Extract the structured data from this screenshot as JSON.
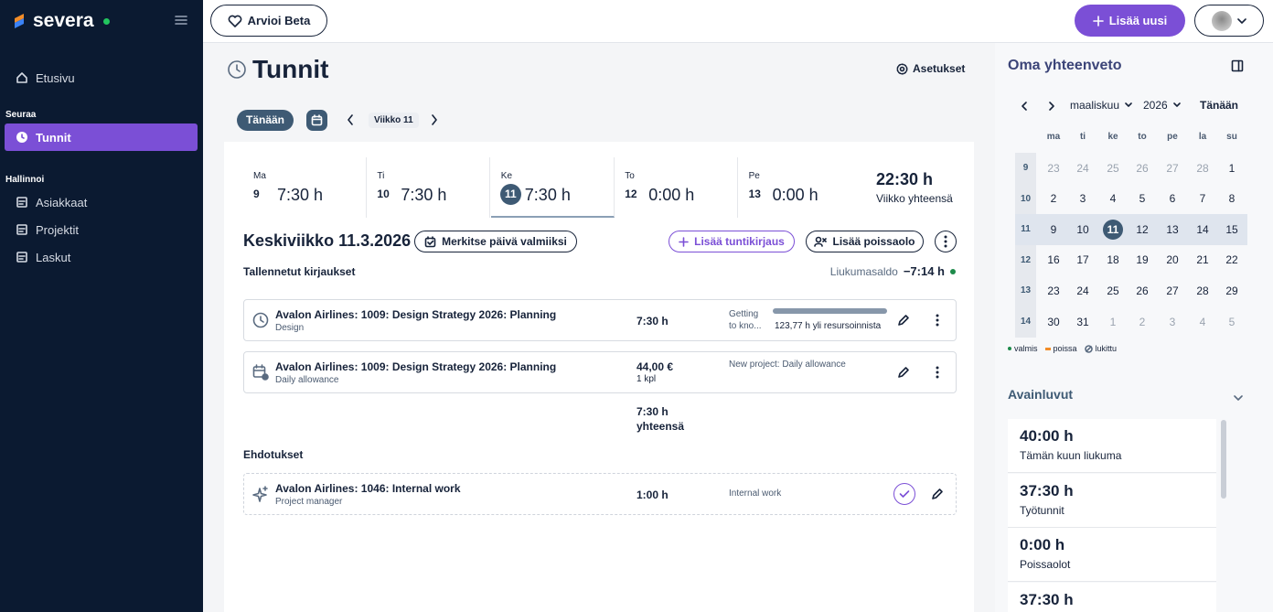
{
  "sidebar": {
    "brand": "severa",
    "home": "Etusivu",
    "sections": [
      {
        "title": "Seuraa",
        "items": [
          "Tunnit"
        ]
      },
      {
        "title": "Hallinnoi",
        "items": [
          "Asiakkaat",
          "Projektit",
          "Laskut"
        ]
      }
    ]
  },
  "topbar": {
    "feedback": "Arvioi Beta",
    "add_new": "Lisää uusi"
  },
  "page": {
    "title": "Tunnit",
    "settings": "Asetukset",
    "today": "Tänään",
    "week": "Viikko 11"
  },
  "week_days": [
    {
      "name": "Ma",
      "date": "9",
      "hours": "7:30 h"
    },
    {
      "name": "Ti",
      "date": "10",
      "hours": "7:30 h"
    },
    {
      "name": "Ke",
      "date": "11",
      "hours": "7:30 h",
      "active": true
    },
    {
      "name": "To",
      "date": "12",
      "hours": "0:00 h"
    },
    {
      "name": "Pe",
      "date": "13",
      "hours": "0:00 h"
    }
  ],
  "week_total": {
    "hours": "22:30 h",
    "label": "Viikko yhteensä"
  },
  "day": {
    "title": "Keskiviikko 11.3.2026",
    "mark_done": "Merkitse päivä valmiiksi",
    "add_entry": "Lisää tuntikirjaus",
    "add_absence": "Lisää poissaolo",
    "saved_heading": "Tallennetut kirjaukset",
    "flex_label": "Liukumasaldo",
    "flex_value": "−7:14 h"
  },
  "entries": [
    {
      "title": "Avalon Airlines: 1009: Design Strategy 2026: Planning",
      "subtitle": "Design",
      "amount": "7:30 h",
      "note": "Getting to kno...",
      "progress": "123,77 h yli resursoinnista"
    },
    {
      "title": "Avalon Airlines: 1009: Design Strategy 2026: Planning",
      "subtitle": "Daily allowance",
      "amount": "44,00 €",
      "quantity": "1 kpl",
      "note": "New project: Daily allowance"
    }
  ],
  "total": {
    "hours": "7:30 h",
    "label": "yhteensä"
  },
  "suggestions": {
    "heading": "Ehdotukset",
    "items": [
      {
        "title": "Avalon Airlines: 1046: Internal work",
        "subtitle": "Project manager",
        "amount": "1:00 h",
        "note": "Internal work"
      }
    ]
  },
  "summary": {
    "title": "Oma yhteenveto",
    "month": "maaliskuu",
    "year": "2026",
    "today": "Tänään",
    "weekdays": [
      "ma",
      "ti",
      "ke",
      "to",
      "pe",
      "la",
      "su"
    ],
    "weeks": [
      {
        "number": "9",
        "days": [
          23,
          24,
          25,
          26,
          27,
          28,
          1
        ]
      },
      {
        "number": "10",
        "days": [
          2,
          3,
          4,
          5,
          6,
          7,
          8
        ]
      },
      {
        "number": "11",
        "days": [
          9,
          10,
          11,
          12,
          13,
          14,
          15
        ]
      },
      {
        "number": "12",
        "days": [
          16,
          17,
          18,
          19,
          20,
          21,
          22
        ]
      },
      {
        "number": "13",
        "days": [
          23,
          24,
          25,
          26,
          27,
          28,
          29
        ]
      },
      {
        "number": "14",
        "days": [
          30,
          31,
          1,
          2,
          3,
          4,
          5
        ]
      }
    ],
    "legend": [
      "valmis",
      "poissa",
      "lukittu"
    ]
  },
  "key_figures": {
    "title": "Avainluvut",
    "items": [
      {
        "value": "40:00 h",
        "label": "Tämän kuun liukuma"
      },
      {
        "value": "37:30 h",
        "label": "Työtunnit"
      },
      {
        "value": "0:00 h",
        "label": "Poissaolot"
      },
      {
        "value": "37:30 h"
      }
    ]
  }
}
